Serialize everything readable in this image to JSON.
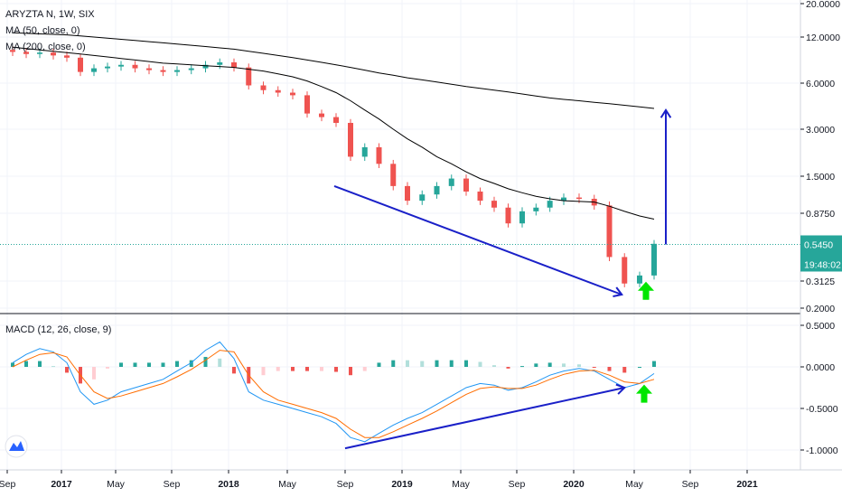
{
  "header": {
    "symbol_line": "ARYZTA N, 1W, SIX",
    "ma50_label": "MA (50, close, 0)",
    "ma200_label": "MA (200, close, 0)",
    "macd_label": "MACD (12, 26, close, 9)"
  },
  "price_tag": {
    "value": "0.5450",
    "countdown": "19:48:02",
    "color": "#26a69a"
  },
  "colors": {
    "up": "#26a69a",
    "down": "#ef5350",
    "ma": "#000000",
    "macd": "#2196f3",
    "signal": "#ff6d00",
    "hist_up_strong": "#26a69a",
    "hist_up_weak": "#b2dfdb",
    "hist_down_strong": "#ef5350",
    "hist_down_weak": "#ffcdd2",
    "annotation": "#1a20c8",
    "signal_arrow": "#00e600"
  },
  "logo": {
    "icon": "tradingview-logo-icon"
  },
  "chart_data": [
    {
      "type": "candlestick",
      "title": "ARYZTA N, 1W, SIX",
      "scale": "log",
      "x": [
        "2016-09",
        "2016-10",
        "2016-11",
        "2016-12",
        "2017-01",
        "2017-02",
        "2017-03",
        "2017-04",
        "2017-05",
        "2017-06",
        "2017-07",
        "2017-08",
        "2017-09",
        "2017-10",
        "2017-11",
        "2017-12",
        "2018-01",
        "2018-02",
        "2018-03",
        "2018-04",
        "2018-05",
        "2018-06",
        "2018-07",
        "2018-08",
        "2018-09",
        "2018-10",
        "2018-11",
        "2018-12",
        "2019-01",
        "2019-02",
        "2019-03",
        "2019-04",
        "2019-05",
        "2019-06",
        "2019-07",
        "2019-08",
        "2019-09",
        "2019-10",
        "2019-11",
        "2019-12",
        "2020-01",
        "2020-02",
        "2020-03",
        "2020-04",
        "2020-05",
        "2020-06"
      ],
      "close": [
        9.6,
        9.3,
        9.5,
        9.1,
        8.8,
        7.1,
        7.5,
        7.7,
        7.9,
        7.5,
        7.3,
        7.1,
        7.3,
        7.5,
        7.9,
        8.2,
        7.6,
        5.8,
        5.4,
        5.2,
        5.0,
        3.8,
        3.6,
        3.3,
        2.0,
        2.3,
        1.8,
        1.3,
        1.05,
        1.15,
        1.3,
        1.45,
        1.2,
        1.05,
        0.95,
        0.75,
        0.9,
        0.95,
        1.05,
        1.1,
        1.08,
        0.98,
        0.45,
        0.3,
        0.34,
        0.55
      ],
      "ma50": [
        10.3,
        10.1,
        9.9,
        9.7,
        9.5,
        9.3,
        9.1,
        8.9,
        8.7,
        8.5,
        8.3,
        8.1,
        8.0,
        7.9,
        7.8,
        7.7,
        7.6,
        7.4,
        7.2,
        6.9,
        6.6,
        6.2,
        5.7,
        5.2,
        4.6,
        4.0,
        3.5,
        3.0,
        2.6,
        2.3,
        2.0,
        1.8,
        1.6,
        1.45,
        1.35,
        1.25,
        1.18,
        1.12,
        1.08,
        1.05,
        1.04,
        1.03,
        0.97,
        0.9,
        0.84,
        0.8
      ],
      "ma200": [
        12.8,
        12.7,
        12.6,
        12.5,
        12.4,
        12.2,
        12.0,
        11.8,
        11.6,
        11.4,
        11.2,
        11.0,
        10.8,
        10.6,
        10.4,
        10.2,
        10.0,
        9.7,
        9.4,
        9.1,
        8.8,
        8.5,
        8.2,
        7.9,
        7.6,
        7.3,
        7.0,
        6.75,
        6.5,
        6.3,
        6.1,
        5.9,
        5.7,
        5.55,
        5.4,
        5.25,
        5.1,
        4.95,
        4.8,
        4.7,
        4.6,
        4.5,
        4.4,
        4.3,
        4.2,
        4.1
      ],
      "last_price": 0.545,
      "y_ticks": [
        "20.0000",
        "12.0000",
        "6.0000",
        "3.0000",
        "1.5000",
        "0.8750",
        "0.3125",
        "0.2000"
      ],
      "x_ticks": [
        "Sep",
        "2017",
        "May",
        "Sep",
        "2018",
        "May",
        "Sep",
        "2019",
        "May",
        "Sep",
        "2020",
        "May",
        "Sep",
        "2021"
      ],
      "annotations": [
        {
          "kind": "trend-line-arrow",
          "from": [
            "2018-09",
            1.3
          ],
          "to": [
            "2020-04",
            0.25
          ]
        },
        {
          "kind": "vertical-arrow",
          "at": "2020-06",
          "from": 0.545,
          "to": 4.0
        },
        {
          "kind": "signal-arrow",
          "at": "2020-05",
          "price": 0.3
        }
      ]
    },
    {
      "type": "line",
      "title": "MACD (12, 26, close, 9)",
      "x": [
        "2016-09",
        "2016-10",
        "2016-11",
        "2016-12",
        "2017-01",
        "2017-02",
        "2017-03",
        "2017-04",
        "2017-05",
        "2017-06",
        "2017-07",
        "2017-08",
        "2017-09",
        "2017-10",
        "2017-11",
        "2017-12",
        "2018-01",
        "2018-02",
        "2018-03",
        "2018-04",
        "2018-05",
        "2018-06",
        "2018-07",
        "2018-08",
        "2018-09",
        "2018-10",
        "2018-11",
        "2018-12",
        "2019-01",
        "2019-02",
        "2019-03",
        "2019-04",
        "2019-05",
        "2019-06",
        "2019-07",
        "2019-08",
        "2019-09",
        "2019-10",
        "2019-11",
        "2019-12",
        "2020-01",
        "2020-02",
        "2020-03",
        "2020-04",
        "2020-05",
        "2020-06"
      ],
      "series": [
        {
          "name": "MACD",
          "values": [
            0.05,
            0.15,
            0.22,
            0.18,
            0.05,
            -0.3,
            -0.45,
            -0.4,
            -0.3,
            -0.25,
            -0.2,
            -0.15,
            -0.05,
            0.05,
            0.2,
            0.3,
            0.1,
            -0.3,
            -0.4,
            -0.45,
            -0.5,
            -0.55,
            -0.6,
            -0.68,
            -0.85,
            -0.9,
            -0.8,
            -0.7,
            -0.62,
            -0.55,
            -0.45,
            -0.35,
            -0.25,
            -0.2,
            -0.22,
            -0.28,
            -0.25,
            -0.18,
            -0.1,
            -0.05,
            -0.02,
            -0.05,
            -0.15,
            -0.25,
            -0.2,
            -0.08
          ]
        },
        {
          "name": "Signal",
          "values": [
            0.0,
            0.08,
            0.15,
            0.17,
            0.12,
            -0.1,
            -0.3,
            -0.38,
            -0.35,
            -0.3,
            -0.25,
            -0.2,
            -0.12,
            -0.03,
            0.08,
            0.2,
            0.18,
            -0.1,
            -0.3,
            -0.4,
            -0.45,
            -0.5,
            -0.55,
            -0.62,
            -0.75,
            -0.85,
            -0.85,
            -0.78,
            -0.7,
            -0.62,
            -0.53,
            -0.43,
            -0.33,
            -0.26,
            -0.24,
            -0.26,
            -0.26,
            -0.22,
            -0.15,
            -0.09,
            -0.05,
            -0.04,
            -0.1,
            -0.18,
            -0.2,
            -0.15
          ]
        }
      ],
      "y_ticks": [
        "0.5000",
        "0.0000",
        "-0.5000",
        "-1.0000"
      ],
      "ylim": [
        -1.15,
        0.6
      ],
      "annotations": [
        {
          "kind": "trend-line-arrow",
          "from": [
            "2018-09",
            -0.98
          ],
          "to": [
            "2020-04",
            -0.25
          ]
        },
        {
          "kind": "signal-arrow",
          "at": "2020-05",
          "value": -0.3
        }
      ]
    }
  ]
}
